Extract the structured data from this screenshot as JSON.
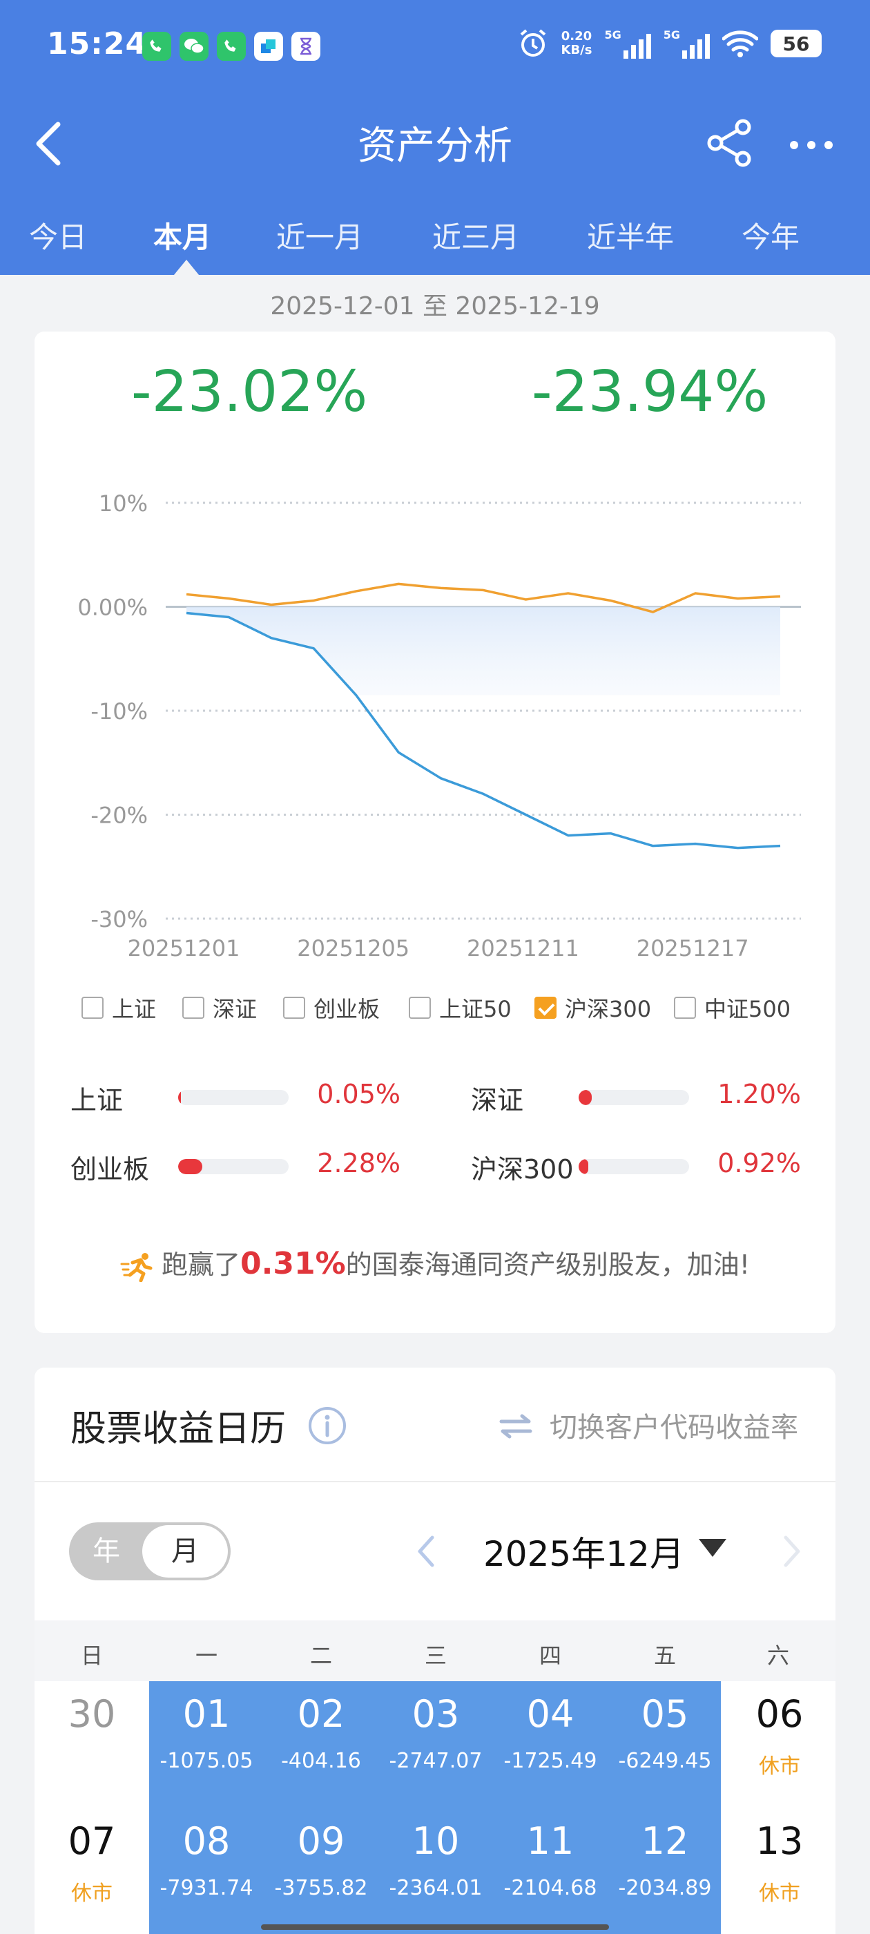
{
  "status_bar": {
    "time": "15:24",
    "net_speed_value": "0.20",
    "net_speed_unit": "KB/s",
    "signal1": "5G",
    "signal2": "5G",
    "battery": "56",
    "app_icons": [
      "phone-icon",
      "wechat-icon",
      "phone-icon",
      "app-icon",
      "hourglass-icon"
    ]
  },
  "nav": {
    "title": "资产分析"
  },
  "tabs": [
    "今日",
    "本月",
    "近一月",
    "近三月",
    "近半年",
    "今年"
  ],
  "active_tab": 1,
  "date_range": "2025-12-01 至 2025-12-19",
  "summary": {
    "pct_left": "-23.02%",
    "pct_right": "-23.94%"
  },
  "chart_data": {
    "type": "line",
    "y_ticks": [
      "10%",
      "0.00%",
      "-10%",
      "-20%",
      "-30%"
    ],
    "y_tick_values": [
      10,
      0,
      -10,
      -20,
      -30
    ],
    "ylim": [
      -30,
      10
    ],
    "x_tick_labels": [
      "20251201",
      "20251205",
      "20251211",
      "20251217"
    ],
    "x_tick_index": [
      0,
      4,
      8,
      12
    ],
    "x": [
      "20251201",
      "20251202",
      "20251203",
      "20251204",
      "20251205",
      "20251208",
      "20251209",
      "20251210",
      "20251211",
      "20251212",
      "20251215",
      "20251216",
      "20251217",
      "20251218",
      "20251219"
    ],
    "series": [
      {
        "color": "#3b9bd9",
        "values": [
          -0.6,
          -1.0,
          -3.0,
          -4.0,
          -8.5,
          -14.0,
          -16.5,
          -18.0,
          -20.0,
          -22.0,
          -21.8,
          -23.0,
          -22.8,
          -23.2,
          -23.0
        ]
      },
      {
        "color": "#f0a030",
        "values": [
          1.2,
          0.8,
          0.2,
          0.6,
          1.5,
          2.2,
          1.8,
          1.6,
          0.7,
          1.3,
          0.6,
          -0.5,
          1.3,
          0.8,
          1.0
        ]
      }
    ],
    "grid": true,
    "legend": "none"
  },
  "indices_checks": [
    {
      "label": "上证",
      "checked": false
    },
    {
      "label": "深证",
      "checked": false
    },
    {
      "label": "创业板",
      "checked": false
    },
    {
      "label": "上证50",
      "checked": false
    },
    {
      "label": "沪深300",
      "checked": true
    },
    {
      "label": "中证500",
      "checked": false
    }
  ],
  "comparison": [
    {
      "label": "上证",
      "value": "0.05%",
      "fill": 0.02
    },
    {
      "label": "深证",
      "value": "1.20%",
      "fill": 0.12
    },
    {
      "label": "创业板",
      "value": "2.28%",
      "fill": 0.22
    },
    {
      "label": "沪深300",
      "value": "0.92%",
      "fill": 0.09
    }
  ],
  "beat": {
    "prefix": "跑赢了",
    "pct": "0.31%",
    "suffix": "的国泰海通同资产级别股友，加油!"
  },
  "calendar": {
    "title": "股票收益日历",
    "switch_label": "切换客户代码收益率",
    "toggle_year": "年",
    "toggle_month": "月",
    "month_label": "2025年12月",
    "weekdays": [
      "日",
      "一",
      "二",
      "三",
      "四",
      "五",
      "六"
    ],
    "rows": [
      [
        {
          "day": "30",
          "sub": "",
          "type": "other"
        },
        {
          "day": "01",
          "sub": "-1075.05",
          "type": "trade"
        },
        {
          "day": "02",
          "sub": "-404.16",
          "type": "trade"
        },
        {
          "day": "03",
          "sub": "-2747.07",
          "type": "trade"
        },
        {
          "day": "04",
          "sub": "-1725.49",
          "type": "trade"
        },
        {
          "day": "05",
          "sub": "-6249.45",
          "type": "trade"
        },
        {
          "day": "06",
          "sub": "休市",
          "type": "off"
        }
      ],
      [
        {
          "day": "07",
          "sub": "休市",
          "type": "off"
        },
        {
          "day": "08",
          "sub": "-7931.74",
          "type": "trade"
        },
        {
          "day": "09",
          "sub": "-3755.82",
          "type": "trade"
        },
        {
          "day": "10",
          "sub": "-2364.01",
          "type": "trade"
        },
        {
          "day": "11",
          "sub": "-2104.68",
          "type": "trade"
        },
        {
          "day": "12",
          "sub": "-2034.89",
          "type": "trade"
        },
        {
          "day": "13",
          "sub": "休市",
          "type": "off"
        }
      ]
    ]
  }
}
